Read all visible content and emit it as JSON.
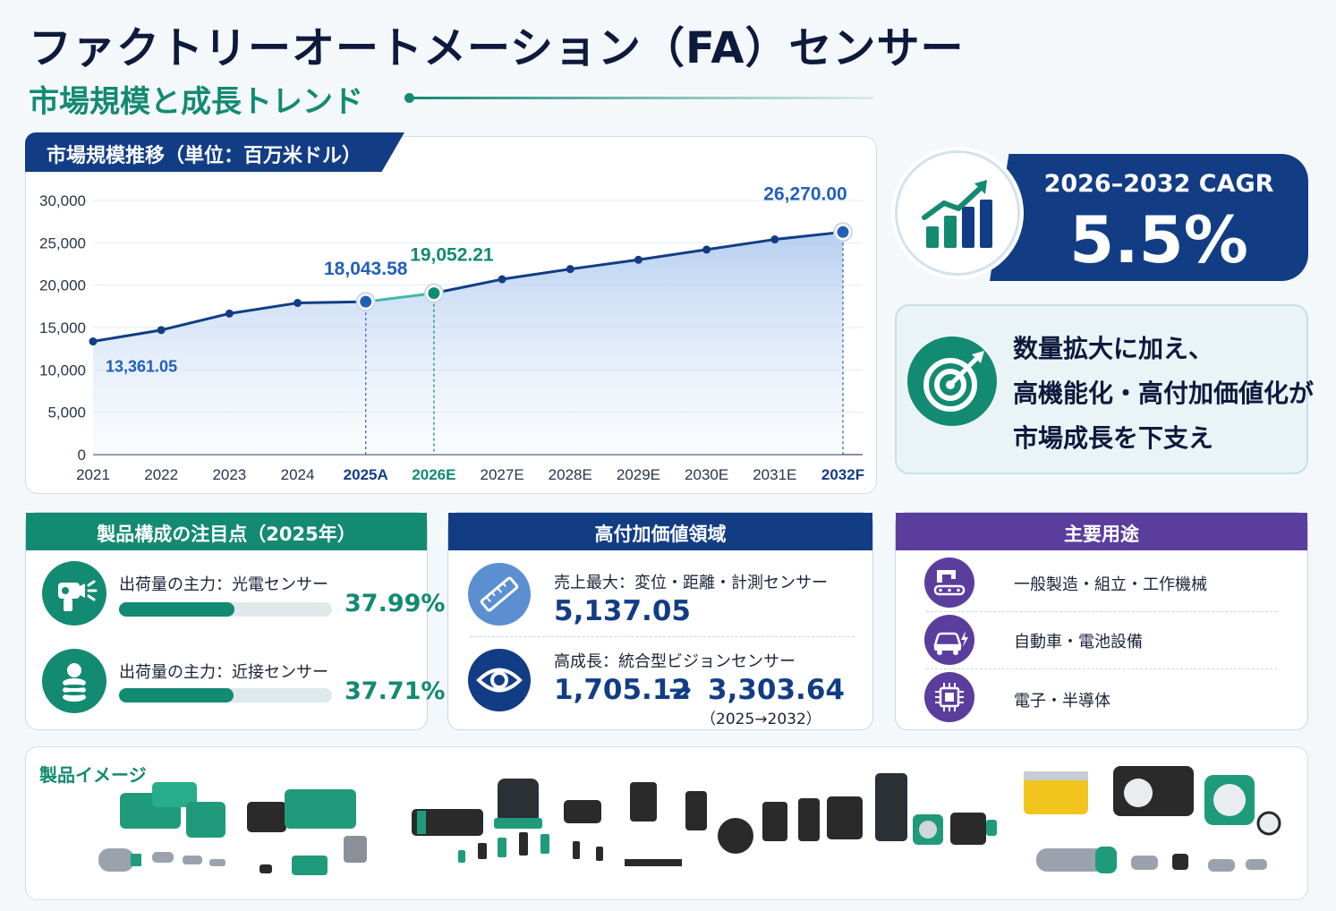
{
  "header": {
    "title": "ファクトリーオートメーション（FA）センサー",
    "subtitle": "市場規模と成長トレンド"
  },
  "colors": {
    "navy": "#123d85",
    "teal": "#138a72",
    "purple": "#5b3d9e"
  },
  "chart_data": {
    "type": "line",
    "title": "市場規模推移（単位：百万米ドル）",
    "categories": [
      "2021",
      "2022",
      "2023",
      "2024",
      "2025A",
      "2026E",
      "2027E",
      "2028E",
      "2029E",
      "2030E",
      "2031E",
      "2032F"
    ],
    "series": [
      {
        "values": [
          13361.05,
          14700,
          16650,
          17900,
          18043.58,
          19052.21,
          20700,
          21900,
          23000,
          24200,
          25400,
          26270.0
        ]
      }
    ],
    "highlighted_categories": [
      "2025A",
      "2026E",
      "2032F"
    ],
    "data_labels": [
      {
        "category": "2021",
        "text": "13,361.05"
      },
      {
        "category": "2025A",
        "text": "18,043.58"
      },
      {
        "category": "2026E",
        "text": "19,052.21"
      },
      {
        "category": "2032F",
        "text": "26,270.00"
      }
    ],
    "y_ticks": [
      "0",
      "5,000",
      "10,000",
      "15,000",
      "20,000",
      "25,000",
      "30,000"
    ],
    "ylim": [
      0,
      30000
    ],
    "grid": true,
    "area_fill": true
  },
  "cagr": {
    "label": "2026–2032 CAGR",
    "value": "5.5%"
  },
  "driver": {
    "lines": [
      "数量拡大に加え、",
      "高機能化・高付加価値化が",
      "市場成長を下支え"
    ]
  },
  "product_mix": {
    "title": "製品構成の注目点（2025年）",
    "items": [
      {
        "label": "出荷量の主力：光電センサー",
        "pct": "37.99%",
        "share": 0.3799,
        "icon": "photoelectric-sensor-icon"
      },
      {
        "label": "出荷量の主力：近接センサー",
        "pct": "37.71%",
        "share": 0.3771,
        "icon": "proximity-sensor-icon"
      }
    ]
  },
  "high_value": {
    "title": "高付加価値領域",
    "items": [
      {
        "label": "売上最大：変位・距離・計測センサー",
        "value": "5,137.05",
        "icon": "ruler-icon"
      },
      {
        "label": "高成長：統合型ビジョンセンサー",
        "value_from": "1,705.12",
        "arrow": "→",
        "value_to": "3,303.64",
        "period": "（2025→2032）",
        "icon": "eye-icon"
      }
    ]
  },
  "applications": {
    "title": "主要用途",
    "items": [
      {
        "label": "一般製造・組立・工作機械",
        "icon": "conveyor-robot-icon"
      },
      {
        "label": "自動車・電池設備",
        "icon": "car-battery-icon"
      },
      {
        "label": "電子・半導体",
        "icon": "chip-icon"
      }
    ]
  },
  "products": {
    "label": "製品イメージ"
  }
}
